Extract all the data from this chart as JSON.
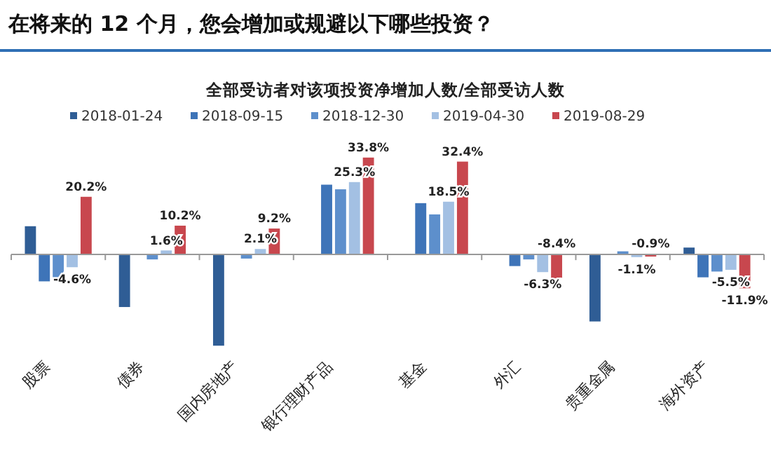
{
  "chart_data": {
    "type": "bar",
    "title": "在将来的 12 个月，您会增加或规避以下哪些投资？",
    "subtitle": "全部受访者对该项投资净增加人数/全部受访人数",
    "categories": [
      "股票",
      "债券",
      "国内房地产",
      "银行理财产品",
      "基金",
      "外汇",
      "贵重金属",
      "海外资产"
    ],
    "legend": "top",
    "series": [
      {
        "name": "2018-01-24",
        "color": "#2f5d95",
        "values": [
          10.0,
          -18.4,
          -31.8,
          null,
          null,
          null,
          -23.4,
          2.6
        ],
        "value_labels": [
          null,
          null,
          null,
          null,
          null,
          null,
          null,
          null
        ]
      },
      {
        "name": "2018-09-15",
        "color": "#3e74b8",
        "values": [
          -9.5,
          -0.3,
          -0.3,
          24.4,
          18.0,
          -4.2,
          -0.3,
          -8.1
        ],
        "value_labels": [
          null,
          null,
          null,
          null,
          null,
          null,
          null,
          null
        ]
      },
      {
        "name": "2018-12-30",
        "color": "#5d8fcc",
        "values": [
          -9.5,
          -1.9,
          -1.6,
          22.8,
          14.1,
          -1.9,
          1.3,
          -6.1
        ],
        "value_labels": [
          null,
          null,
          null,
          null,
          null,
          null,
          null,
          null
        ]
      },
      {
        "name": "2019-04-30",
        "color": "#a3c0e3",
        "values": [
          -4.6,
          1.6,
          2.1,
          25.3,
          18.5,
          -6.3,
          -1.1,
          -5.5
        ],
        "value_labels": [
          "-4.6%",
          "1.6%",
          "2.1%",
          "25.3%",
          "18.5%",
          "-6.3%",
          "-1.1%",
          "-5.5%"
        ]
      },
      {
        "name": "2019-08-29",
        "color": "#c8474e",
        "values": [
          20.2,
          10.2,
          9.2,
          33.8,
          32.4,
          -8.4,
          -0.9,
          -11.9
        ],
        "value_labels": [
          "20.2%",
          "10.2%",
          "9.2%",
          "33.8%",
          "32.4%",
          "-8.4%",
          "-0.9%",
          "-11.9%"
        ]
      }
    ]
  }
}
